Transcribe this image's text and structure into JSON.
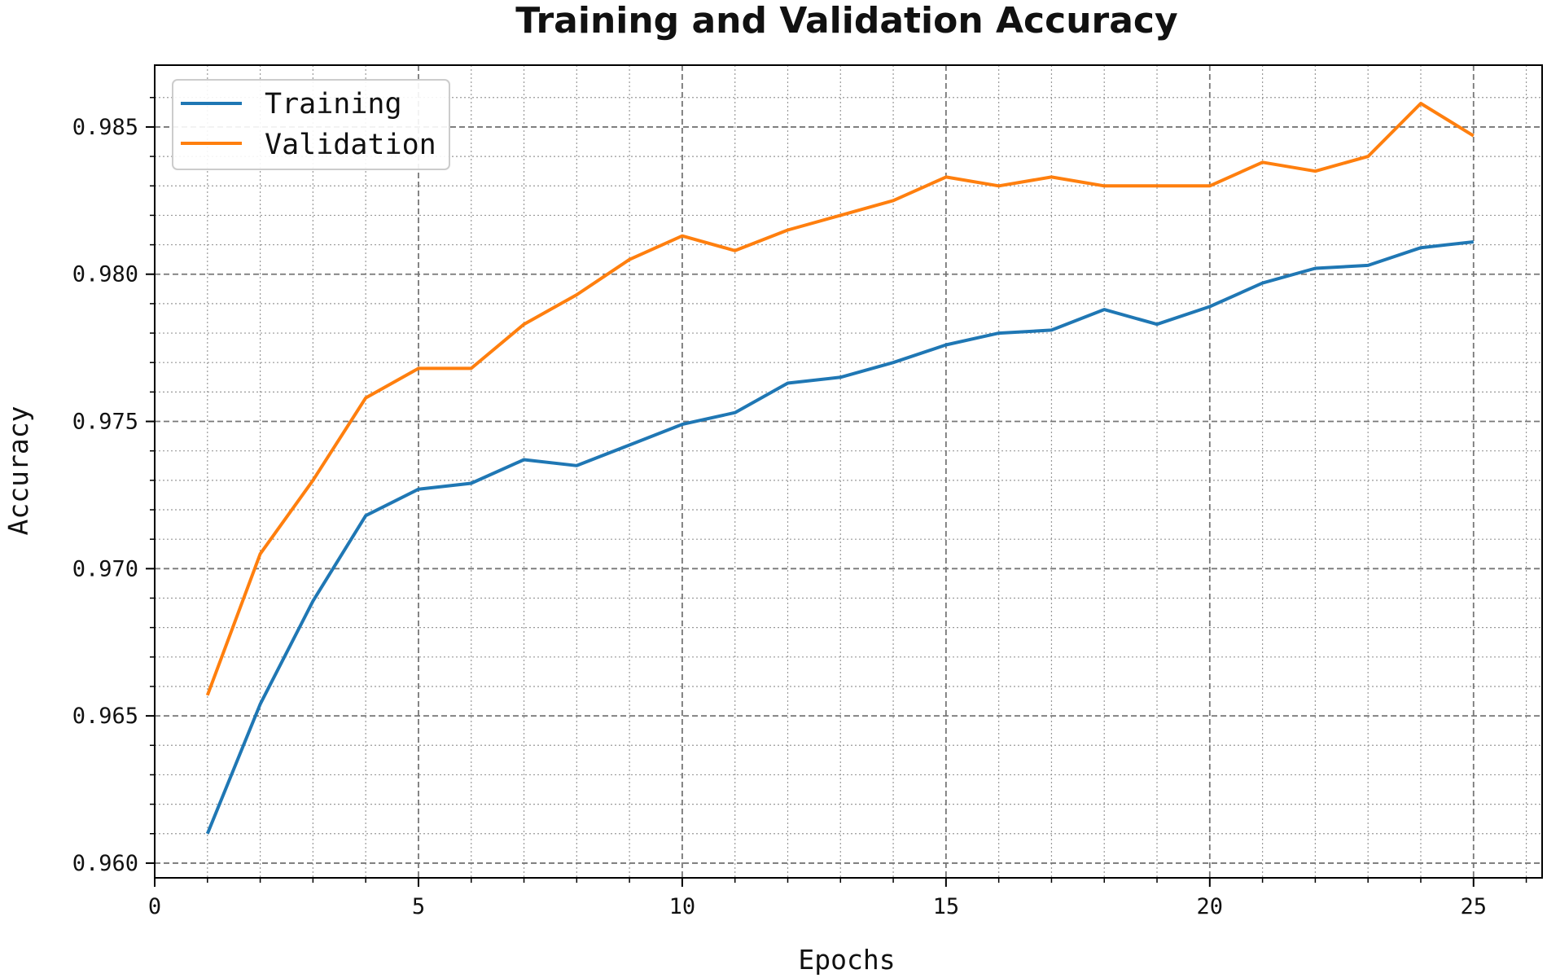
{
  "chart_data": {
    "type": "line",
    "title": "Training and Validation Accuracy",
    "xlabel": "Epochs",
    "ylabel": "Accuracy",
    "xlim": [
      0,
      26.3
    ],
    "ylim": [
      0.9595,
      0.9871
    ],
    "xticks": [
      0,
      5,
      10,
      15,
      20,
      25
    ],
    "xtick_labels": [
      "0",
      "5",
      "10",
      "15",
      "20",
      "25"
    ],
    "yticks": [
      0.96,
      0.965,
      0.97,
      0.975,
      0.98,
      0.985
    ],
    "ytick_labels": [
      "0.960",
      "0.965",
      "0.970",
      "0.975",
      "0.980",
      "0.985"
    ],
    "grid": true,
    "legend_position": "top-left",
    "x": [
      1,
      2,
      3,
      4,
      5,
      6,
      7,
      8,
      9,
      10,
      11,
      12,
      13,
      14,
      15,
      16,
      17,
      18,
      19,
      20,
      21,
      22,
      23,
      24,
      25
    ],
    "series": [
      {
        "name": "Training",
        "color": "#1f77b4",
        "values": [
          0.961,
          0.9654,
          0.9689,
          0.9718,
          0.9727,
          0.9729,
          0.9737,
          0.9735,
          0.9742,
          0.9749,
          0.9753,
          0.9763,
          0.9765,
          0.977,
          0.9776,
          0.978,
          0.9781,
          0.9788,
          0.9783,
          0.9789,
          0.9797,
          0.9802,
          0.9803,
          0.9809,
          0.9811
        ]
      },
      {
        "name": "Validation",
        "color": "#ff7f0e",
        "values": [
          0.9657,
          0.9705,
          0.973,
          0.9758,
          0.9768,
          0.9768,
          0.9783,
          0.9793,
          0.9805,
          0.9813,
          0.9808,
          0.9815,
          0.982,
          0.9825,
          0.9833,
          0.983,
          0.9833,
          0.983,
          0.983,
          0.983,
          0.9838,
          0.9835,
          0.984,
          0.9858,
          0.9847
        ]
      }
    ]
  }
}
